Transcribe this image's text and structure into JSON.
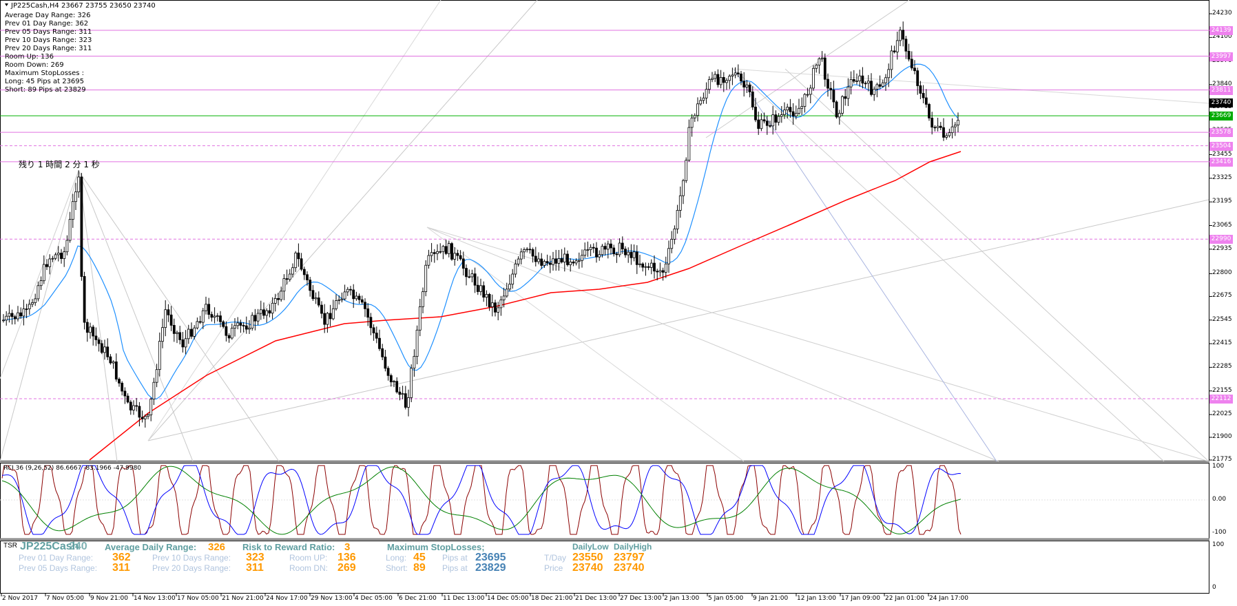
{
  "header": {
    "title": "JP225Cash,H4  23667 23755 23650 23740"
  },
  "info": [
    "Average Day  Range: 326",
    "Prev 01  Day  Range: 362",
    "Prev 05  Days Range: 311",
    "Prev 10  Days Range: 323",
    "Prev 20  Days Range: 311",
    "Room Up:      136",
    "Room Down: 269",
    "Maximum StopLosses :",
    "Long:  45 Pips at 23695",
    "Short: 89 Pips at 23829"
  ],
  "timer": "残り 1 時間 2 分 1 秒",
  "price_axis": [
    "24230",
    "24100",
    "23970",
    "23840",
    "23715",
    "23585",
    "23455",
    "23325",
    "23195",
    "23065",
    "22935",
    "22800",
    "22675",
    "22545",
    "22415",
    "22285",
    "22155",
    "22025",
    "21900",
    "21775"
  ],
  "price_labels": [
    {
      "text": "24139",
      "color": "#ee82ee"
    },
    {
      "text": "23997",
      "color": "#ee82ee"
    },
    {
      "text": "23811",
      "color": "#ee82ee"
    },
    {
      "text": "23740",
      "color": "#000000"
    },
    {
      "text": "23669",
      "color": "#00aa00"
    },
    {
      "text": "23578",
      "color": "#ee82ee"
    },
    {
      "text": "23504",
      "color": "#ee82ee"
    },
    {
      "text": "23416",
      "color": "#ee82ee"
    },
    {
      "text": "22990",
      "color": "#ee82ee"
    },
    {
      "text": "22112",
      "color": "#ee82ee"
    }
  ],
  "rci": {
    "label": "RCI 36 (9,26,52) 86.6667 -83.1966 -47.9980",
    "axis": [
      "100",
      "0.00",
      "-100"
    ]
  },
  "tsr_axis": [
    "100",
    "0"
  ],
  "time_axis": [
    "2 Nov 2017",
    "7 Nov 05:00",
    "9 Nov 21:00",
    "14 Nov 13:00",
    "17 Nov 05:00",
    "21 Nov 21:00",
    "24 Nov 17:00",
    "29 Nov 13:00",
    "4 Dec 05:00",
    "6 Dec 21:00",
    "11 Dec 13:00",
    "14 Dec 05:00",
    "18 Dec 21:00",
    "21 Dec 13:00",
    "27 Dec 13:00",
    "2 Jan 13:00",
    "5 Jan 05:00",
    "9 Jan 21:00",
    "12 Jan 13:00",
    "17 Jan 09:00",
    "22 Jan 01:00",
    "24 Jan 17:00"
  ],
  "tsr": {
    "tag": "TSR",
    "symbol": "JP225Cash",
    "symbol_suffix": "240",
    "adr_label": "Average Daily Range:",
    "adr_value": "326",
    "rr_label": "Risk to Reward Ratio:",
    "rr_value": "3",
    "msl_label": "Maximum StopLosses;",
    "daily_low_h": "DailyLow",
    "daily_high_h": "DailyHigh",
    "p01_label": "Prev 01 Day Range:",
    "p01_value": "362",
    "p05_label": "Prev 05 Days Range:",
    "p05_value": "311",
    "p10_label": "Prev 10 Days Range:",
    "p10_value": "323",
    "p20_label": "Prev 20 Days Range:",
    "p20_value": "311",
    "room_up_label": "Room UP:",
    "room_up_value": "136",
    "room_dn_label": "Room DN:",
    "room_dn_value": "269",
    "long_label": "Long:",
    "long_value": "45",
    "short_label": "Short:",
    "short_value": "89",
    "pips_at_1": "Pips at",
    "pips_val_1": "23695",
    "pips_at_2": "Pips at",
    "pips_val_2": "23829",
    "tday_label": "T/Day",
    "tday_low": "23550",
    "tday_high": "23797",
    "price_label": "Price",
    "price_low": "23740",
    "price_high": "23740"
  },
  "colors": {
    "orange": "#ff9900",
    "steel": "#4682b4",
    "teal": "#5f9ea0",
    "faded": "#b0c4de",
    "violet": "#ee82ee",
    "ma_fast": "#1e90ff",
    "ma_slow": "#ff0000"
  }
}
